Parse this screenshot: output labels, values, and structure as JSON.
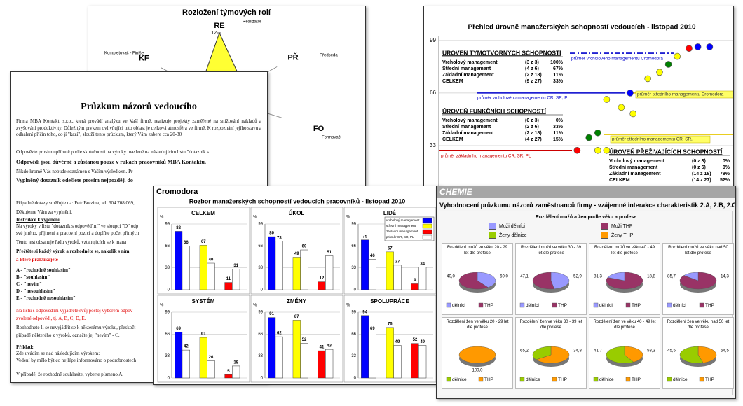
{
  "radar": {
    "title": "Rozložení týmových rolí",
    "rlim": [
      0,
      12
    ],
    "ticks": [
      12
    ],
    "color": "#ffff33",
    "axes": [
      {
        "code": "RE",
        "role": "Realizátor",
        "value": 12
      },
      {
        "code": "PŘ",
        "role": "Předseda",
        "value": 5
      },
      {
        "code": "FO",
        "role": "Formovač",
        "value": 9
      },
      {
        "code": "KF",
        "role": "Kompletovač - Finišer",
        "value": 4
      }
    ]
  },
  "survey": {
    "title": "Průzkum názorů vedoucího",
    "lines": [
      "Firma MBA Kontakt, s.r.o., která provádí analýzu ve Vaší firmě, realizuje projekty zaměřené na snižování nákladů a zvyšování produktivity. Důležitým prvkem ovlivňující tuto oblast je celková atmosféra ve firmě. K rozpoznání jejího stavu a odhalení příčin toho, co jí \"kazí\", slouží tento průzkum, který Vám zabere cca 20-30",
      "Odpovězte prosím upřímně podle skutečnosti na výroky uvedené na následujícím listu \"dotazník s",
      "Odpovědi jsou důvěrné a zůstanou pouze v rukách pracovníků MBA Kontaktu.",
      "Nikdo kromě Vás nebude seznámen s Vaším výsledkem. Pr",
      "Vyplněný dotazník odešlete prosím nejpozději do",
      "Případné dotazy směřujte na: Petr Brezina, tel. 604 708 069,",
      "Děkujeme Vám za vyplnění.",
      "Instrukce k vyplnění",
      "Na výroky v listu \"dotazník s odpověďmi\" ve sloupci \"D\" odp",
      "své jméno, příjmení a pracovní pozici a doplňte počet přímých",
      "Tento test obsahuje řadu výroků, vztahujících se k mana",
      "Přečtěte si každý výrok a rozhodněte se, nakolik s ním",
      "a které praktikujete",
      "A - \"rozhodně souhlasím\"",
      "B - \"souhlasím\"",
      "C - \"nevím\"",
      "D - \"nesouhlasím\"",
      "E - \"rozhodně nesouhlasím\"",
      "Na listu s odpověďmi vyjádřete svůj postoj výběrem odpov",
      "zvolené odpovědi, tj. A, B, C, D, E.",
      "Rozhodnete-li se nevyjádřit se k některému výroku, přeskočt",
      "případě některého z výroků, označte jej \"nevím\" - C.",
      "Příklad:",
      "Zde uvádím se nad následujícím výrokem:",
      "Vedení by mělo být co nejlépe informováno o podrobnostech",
      "V případě, že rozhodně souhlasíte, vyberte písmeno A."
    ]
  },
  "bars": {
    "company": "Cromodora",
    "title": "Rozbor manažerských schopností vedoucích pracovníků - listopad 2010",
    "unit": "%",
    "ylim": [
      0,
      99
    ],
    "yticks": [
      0,
      33,
      66,
      99
    ],
    "legend": [
      {
        "name": "vrcholový management",
        "color": "#0000ff"
      },
      {
        "name": "střední management",
        "color": "#ffff00"
      },
      {
        "name": "základní management",
        "color": "#ff0000"
      },
      {
        "name": "průměr CR, SR, PL",
        "color": "#ffffff"
      }
    ],
    "panels": [
      {
        "name": "CELKEM",
        "values": [
          88,
          67,
          11
        ],
        "average": [
          66,
          40,
          31
        ]
      },
      {
        "name": "ÚKOL",
        "values": [
          80,
          49,
          12
        ],
        "average": [
          73,
          60,
          51
        ]
      },
      {
        "name": "LIDÉ",
        "values": [
          75,
          57,
          9
        ],
        "average": [
          46,
          37,
          34
        ]
      },
      {
        "name": "SYSTÉM",
        "values": [
          69,
          61,
          5
        ],
        "average": [
          42,
          26,
          18
        ]
      },
      {
        "name": "ZMĚNY",
        "values": [
          91,
          87,
          41
        ],
        "average": [
          62,
          52,
          43
        ]
      },
      {
        "name": "SPOLUPRÁCE",
        "values": [
          94,
          76,
          52
        ],
        "average": [
          69,
          49,
          49
        ]
      }
    ]
  },
  "overview": {
    "title": "Přehled úrovně manažerských schopností vedoucích - listopad 2010",
    "xlim": [
      0,
      100
    ],
    "ylim": [
      0,
      102
    ],
    "yticks": [
      33,
      66,
      99
    ],
    "grid": true,
    "sections": [
      {
        "title": "ÚROVEŇ TÝMOTVORNÝCH SCHOPNOSTÍ",
        "rows": [
          [
            "Vrcholový management",
            "(3 z 3)",
            "100%"
          ],
          [
            "Střední management",
            "(4 z 6)",
            "67%"
          ],
          [
            "Základní management",
            "(2 z 18)",
            "11%"
          ],
          [
            "CELKEM",
            "(9 z 27)",
            "33%"
          ]
        ]
      },
      {
        "title": "ÚROVEŇ FUNKČNÍCH SCHOPNOSTÍ",
        "rows": [
          [
            "Vrcholový management",
            "(0 z 3)",
            "0%"
          ],
          [
            "Střední management",
            "(2 z 6)",
            "33%"
          ],
          [
            "Základní management",
            "(2 z 18)",
            "11%"
          ],
          [
            "CELKEM",
            "(4 z 27)",
            "15%"
          ]
        ]
      },
      {
        "title": "ÚROVEŇ PŘEŽIVAJÍCÍCH SCHOPNOSTÍ",
        "rows": [
          [
            "Vrcholový management",
            "(0 z 3)",
            "0%"
          ],
          [
            "Střední management",
            "(0 z 6)",
            "0%"
          ],
          [
            "Základní management",
            "(14 z 18)",
            "78%"
          ],
          [
            "CELKEM",
            "(14 z 27)",
            "52%"
          ]
        ]
      }
    ],
    "averages": [
      {
        "label": "průměr vrcholového managementu Cromodora",
        "value": 91,
        "color": "#0000cc"
      },
      {
        "label": "průměr vrcholového managementu CR, SR, PL",
        "value": 66,
        "color": "#0000cc"
      },
      {
        "label": "průměr středního managementu Cromodora",
        "value": 66,
        "color": "#e6c700"
      },
      {
        "label": "průměr středního managementu CR, SR,",
        "value": 40,
        "color": "#e6c700"
      },
      {
        "label": "průměr základního managementu CR, SR, PL",
        "value": 30,
        "color": "#cc0000"
      }
    ],
    "points": [
      {
        "x": 85,
        "y": 94,
        "color": "#ff0000"
      },
      {
        "x": 88,
        "y": 95,
        "color": "#0000ff"
      },
      {
        "x": 92,
        "y": 95,
        "color": "#0000ff"
      },
      {
        "x": 81,
        "y": 89,
        "color": "#ffff00"
      },
      {
        "x": 78,
        "y": 84,
        "color": "#008000"
      },
      {
        "x": 75,
        "y": 79,
        "color": "#ffff00"
      },
      {
        "x": 71,
        "y": 75,
        "color": "#ffff00"
      },
      {
        "x": 65,
        "y": 66,
        "color": "#0000ff"
      },
      {
        "x": 57,
        "y": 62,
        "color": "#ffff00"
      },
      {
        "x": 62,
        "y": 57,
        "color": "#ffff00"
      },
      {
        "x": 66,
        "y": 53,
        "color": "#ffff00"
      },
      {
        "x": 54,
        "y": 41,
        "color": "#008000"
      },
      {
        "x": 51,
        "y": 38,
        "color": "#008000"
      },
      {
        "x": 47,
        "y": 30,
        "color": "#ff0000"
      },
      {
        "x": 54,
        "y": 30,
        "color": "#ffff00"
      },
      {
        "x": 57,
        "y": 30,
        "color": "#ffff00"
      }
    ]
  },
  "chemie": {
    "header": "CHEMIE",
    "title": "Vyhodnocení průzkumu názorů zaměstnanců firmy - vzájemné interakce charakteristik 2.A, 2.B, 2.C",
    "chart_title": "Rozdělení mužů a žen podle věku a profese",
    "legend": [
      {
        "name": "Muži dělníci",
        "color": "#9999ff"
      },
      {
        "name": "Muži THP",
        "color": "#993366"
      },
      {
        "name": "Ženy dělnice",
        "color": "#99cc00"
      },
      {
        "name": "Ženy THP",
        "color": "#ff9900"
      }
    ],
    "pies": [
      {
        "title": "Rozdělení mužů ve věku 20 - 29 let dle profese",
        "slices": [
          {
            "value": 40,
            "label": "40,0",
            "color": "#9999ff"
          },
          {
            "value": 60,
            "label": "60,0",
            "color": "#993366"
          }
        ],
        "legend": [
          {
            "name": "dělníci",
            "color": "#9999ff"
          },
          {
            "name": "THP",
            "color": "#993366"
          }
        ]
      },
      {
        "title": "Rozdělení mužů ve věku 30 - 39 let dle profese",
        "slices": [
          {
            "value": 47.1,
            "label": "47,1",
            "color": "#9999ff"
          },
          {
            "value": 52.9,
            "label": "52,9",
            "color": "#993366"
          }
        ],
        "legend": [
          {
            "name": "dělníci",
            "color": "#9999ff"
          },
          {
            "name": "THP",
            "color": "#993366"
          }
        ]
      },
      {
        "title": "Rozdělení mužů ve věku 40 - 49 let dle profese",
        "slices": [
          {
            "value": 81.3,
            "label": "81,3",
            "color": "#993366"
          },
          {
            "value": 18.8,
            "label": "18,8",
            "color": "#9999ff"
          }
        ],
        "legend": [
          {
            "name": "dělníci",
            "color": "#9999ff"
          },
          {
            "name": "THP",
            "color": "#993366"
          }
        ]
      },
      {
        "title": "Rozdělení mužů ve věku nad 50 let dle profese",
        "slices": [
          {
            "value": 85.7,
            "label": "85,7",
            "color": "#993366"
          },
          {
            "value": 14.3,
            "label": "14,3",
            "color": "#9999ff"
          }
        ],
        "legend": [
          {
            "name": "dělníci",
            "color": "#9999ff"
          },
          {
            "name": "THP",
            "color": "#993366"
          }
        ]
      },
      {
        "title": "Rozdělení žen ve věku 20 - 29 let dle profese",
        "slices": [
          {
            "value": 100,
            "label": "100,0",
            "color": "#ff9900"
          }
        ],
        "legend": [
          {
            "name": "dělnice",
            "color": "#99cc00"
          },
          {
            "name": "THP",
            "color": "#ff9900"
          }
        ]
      },
      {
        "title": "Rozdělení žen ve věku 30 - 39 let dle profese",
        "slices": [
          {
            "value": 65.2,
            "label": "65,2",
            "color": "#ff9900"
          },
          {
            "value": 34.8,
            "label": "34,8",
            "color": "#99cc00"
          }
        ],
        "legend": [
          {
            "name": "dělnice",
            "color": "#99cc00"
          },
          {
            "name": "THP",
            "color": "#ff9900"
          }
        ]
      },
      {
        "title": "Rozdělení žen ve věku 40 - 49 let dle profese",
        "slices": [
          {
            "value": 41.7,
            "label": "41,7",
            "color": "#ff9900"
          },
          {
            "value": 58.3,
            "label": "58,3",
            "color": "#99cc00"
          }
        ],
        "legend": [
          {
            "name": "dělnice",
            "color": "#99cc00"
          },
          {
            "name": "THP",
            "color": "#ff9900"
          }
        ]
      },
      {
        "title": "Rozdělení žen ve věku nad 50 let dle profese",
        "slices": [
          {
            "value": 45.5,
            "label": "45,5",
            "color": "#ff9900"
          },
          {
            "value": 54.5,
            "label": "54,5",
            "color": "#99cc00"
          }
        ],
        "legend": [
          {
            "name": "dělnice",
            "color": "#99cc00"
          },
          {
            "name": "THP",
            "color": "#ff9900"
          }
        ]
      }
    ]
  }
}
